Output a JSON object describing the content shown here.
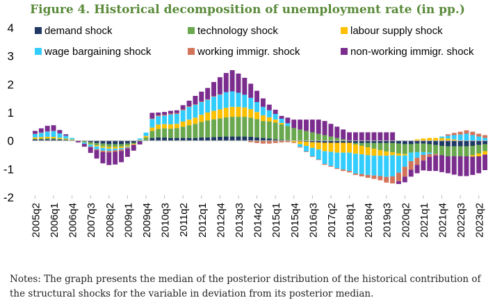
{
  "title": "Figure 4. Historical decomposition of unemployment rate (in pp.)",
  "notes": "Notes: The graph presents the median of the posterior distribution of the historical contribution of the structural shocks for the variable in deviation from its posterior median.",
  "chart_data": {
    "type": "bar",
    "stacked": true,
    "ylim": [
      -2,
      4
    ],
    "yticks": [
      -2,
      -1,
      0,
      1,
      2,
      3,
      4
    ],
    "grid": false,
    "legend": "top",
    "xlabels": [
      "2005q2",
      "2006q1",
      "2006q4",
      "2007q3",
      "2008q2",
      "2009q1",
      "2009q4",
      "2010q3",
      "2011q2",
      "2012q1",
      "2012q4",
      "2013q3",
      "2014q2",
      "2015q1",
      "2015q4",
      "2016q3",
      "2017q2",
      "2018q1",
      "2018q4",
      "2019q3",
      "2020q2",
      "2021q1",
      "2021q4",
      "2022q3",
      "2023q2"
    ],
    "categories": [
      "2005q2",
      "2005q3",
      "2005q4",
      "2006q1",
      "2006q2",
      "2006q3",
      "2006q4",
      "2007q1",
      "2007q2",
      "2007q3",
      "2007q4",
      "2008q1",
      "2008q2",
      "2008q3",
      "2008q4",
      "2009q1",
      "2009q2",
      "2009q3",
      "2009q4",
      "2010q1",
      "2010q2",
      "2010q3",
      "2010q4",
      "2011q1",
      "2011q2",
      "2011q3",
      "2011q4",
      "2012q1",
      "2012q2",
      "2012q3",
      "2012q4",
      "2013q1",
      "2013q2",
      "2013q3",
      "2013q4",
      "2014q1",
      "2014q2",
      "2014q3",
      "2014q4",
      "2015q1",
      "2015q2",
      "2015q3",
      "2015q4",
      "2016q1",
      "2016q2",
      "2016q3",
      "2016q4",
      "2017q1",
      "2017q2",
      "2017q3",
      "2017q4",
      "2018q1",
      "2018q2",
      "2018q3",
      "2018q4",
      "2019q1",
      "2019q2",
      "2019q3",
      "2019q4",
      "2020q1",
      "2020q2",
      "2020q3",
      "2020q4",
      "2021q1",
      "2021q2",
      "2021q3",
      "2021q4",
      "2022q1",
      "2022q2",
      "2022q3",
      "2022q4",
      "2023q1",
      "2023q2",
      "2023q3"
    ],
    "series": [
      {
        "name": "demand shock",
        "color": "#1f3864",
        "values": [
          0.05,
          0.05,
          0.05,
          0.05,
          0.04,
          0.03,
          0.02,
          0.0,
          -0.02,
          -0.05,
          -0.08,
          -0.1,
          -0.12,
          -0.12,
          -0.12,
          -0.1,
          -0.07,
          -0.03,
          0.02,
          0.1,
          0.12,
          0.12,
          0.1,
          0.1,
          0.1,
          0.1,
          0.1,
          0.12,
          0.12,
          0.13,
          0.14,
          0.15,
          0.15,
          0.15,
          0.15,
          0.14,
          0.12,
          0.1,
          0.08,
          0.05,
          0.03,
          0.02,
          0.0,
          -0.02,
          -0.03,
          -0.05,
          -0.06,
          -0.07,
          -0.07,
          -0.07,
          -0.07,
          -0.07,
          -0.08,
          -0.08,
          -0.08,
          -0.08,
          -0.08,
          -0.08,
          -0.08,
          -0.1,
          -0.12,
          -0.12,
          -0.1,
          -0.1,
          -0.12,
          -0.15,
          -0.18,
          -0.2,
          -0.2,
          -0.2,
          -0.2,
          -0.18,
          -0.15,
          -0.12
        ]
      },
      {
        "name": "technology shock",
        "color": "#6aa84f",
        "values": [
          0.02,
          0.03,
          0.04,
          0.04,
          0.03,
          0.02,
          0.01,
          -0.01,
          -0.03,
          -0.06,
          -0.08,
          -0.1,
          -0.1,
          -0.1,
          -0.09,
          -0.07,
          -0.04,
          0.02,
          0.1,
          0.25,
          0.3,
          0.32,
          0.33,
          0.35,
          0.4,
          0.45,
          0.5,
          0.55,
          0.6,
          0.63,
          0.65,
          0.68,
          0.7,
          0.7,
          0.7,
          0.68,
          0.65,
          0.6,
          0.6,
          0.6,
          0.55,
          0.5,
          0.45,
          0.4,
          0.35,
          0.3,
          0.25,
          0.2,
          0.15,
          0.1,
          0.05,
          0.0,
          -0.05,
          -0.1,
          -0.15,
          -0.2,
          -0.25,
          -0.3,
          -0.33,
          -0.35,
          -0.35,
          -0.3,
          -0.3,
          -0.3,
          -0.3,
          -0.32,
          -0.33,
          -0.35,
          -0.35,
          -0.35,
          -0.35,
          -0.33,
          -0.3,
          -0.25
        ]
      },
      {
        "name": "labour supply shock",
        "color": "#ffc000",
        "values": [
          0.05,
          0.05,
          0.05,
          0.05,
          0.04,
          0.03,
          0.02,
          0.01,
          -0.01,
          -0.02,
          -0.04,
          -0.05,
          -0.06,
          -0.06,
          -0.05,
          -0.04,
          -0.02,
          0.01,
          0.05,
          0.12,
          0.15,
          0.15,
          0.15,
          0.15,
          0.18,
          0.2,
          0.22,
          0.25,
          0.28,
          0.3,
          0.32,
          0.34,
          0.35,
          0.35,
          0.33,
          0.3,
          0.25,
          0.2,
          0.15,
          0.1,
          0.05,
          0.0,
          -0.05,
          -0.1,
          -0.15,
          -0.2,
          -0.25,
          -0.3,
          -0.32,
          -0.35,
          -0.35,
          -0.35,
          -0.33,
          -0.3,
          -0.28,
          -0.25,
          -0.2,
          -0.15,
          -0.1,
          -0.08,
          -0.05,
          0.0,
          0.05,
          0.08,
          0.1,
          0.1,
          0.1,
          0.08,
          0.05,
          0.02,
          0.0,
          -0.05,
          -0.1,
          -0.12
        ]
      },
      {
        "name": "wage bargaining shock",
        "color": "#33ccff",
        "values": [
          0.12,
          0.15,
          0.18,
          0.2,
          0.15,
          0.1,
          0.05,
          0.0,
          -0.05,
          -0.08,
          -0.1,
          -0.1,
          -0.08,
          -0.06,
          -0.05,
          -0.03,
          0.0,
          0.05,
          0.12,
          0.3,
          0.3,
          0.3,
          0.35,
          0.35,
          0.4,
          0.45,
          0.45,
          0.45,
          0.45,
          0.5,
          0.52,
          0.55,
          0.55,
          0.5,
          0.45,
          0.4,
          0.35,
          0.3,
          0.25,
          0.2,
          0.15,
          0.1,
          0.0,
          -0.1,
          -0.2,
          -0.3,
          -0.35,
          -0.45,
          -0.5,
          -0.55,
          -0.6,
          -0.65,
          -0.7,
          -0.7,
          -0.7,
          -0.7,
          -0.72,
          -0.75,
          -0.75,
          -0.6,
          -0.4,
          -0.3,
          -0.2,
          -0.1,
          -0.05,
          0.0,
          0.05,
          0.1,
          0.15,
          0.2,
          0.25,
          0.2,
          0.15,
          0.1
        ]
      },
      {
        "name": "working immigr. shock",
        "color": "#d2745a",
        "values": [
          0.01,
          0.01,
          0.01,
          0.01,
          0.0,
          0.0,
          0.0,
          0.0,
          0.0,
          -0.02,
          -0.03,
          -0.05,
          -0.05,
          -0.05,
          -0.05,
          -0.03,
          -0.02,
          0.0,
          0.0,
          0.02,
          0.03,
          0.03,
          0.03,
          0.03,
          0.03,
          0.02,
          0.02,
          0.02,
          0.02,
          0.02,
          0.02,
          0.0,
          0.0,
          0.0,
          0.0,
          -0.05,
          -0.08,
          -0.1,
          -0.1,
          -0.08,
          -0.06,
          -0.05,
          -0.03,
          -0.02,
          -0.02,
          -0.02,
          -0.02,
          -0.03,
          -0.03,
          -0.03,
          -0.05,
          -0.05,
          -0.05,
          -0.08,
          -0.1,
          -0.12,
          -0.15,
          -0.2,
          -0.25,
          -0.3,
          -0.35,
          -0.3,
          -0.25,
          -0.2,
          -0.1,
          -0.05,
          0.0,
          0.05,
          0.08,
          0.1,
          0.12,
          0.12,
          0.1,
          0.1
        ]
      },
      {
        "name": "non-working immigr. shock",
        "color": "#7b2d8e",
        "values": [
          0.1,
          0.15,
          0.2,
          0.2,
          0.12,
          0.05,
          0.0,
          -0.05,
          -0.1,
          -0.2,
          -0.3,
          -0.4,
          -0.45,
          -0.45,
          -0.4,
          -0.3,
          -0.2,
          -0.1,
          0.0,
          0.2,
          0.1,
          0.1,
          0.1,
          0.1,
          0.15,
          0.2,
          0.3,
          0.35,
          0.4,
          0.5,
          0.6,
          0.68,
          0.75,
          0.68,
          0.6,
          0.5,
          0.4,
          0.3,
          0.2,
          0.15,
          0.1,
          0.2,
          0.3,
          0.35,
          0.4,
          0.45,
          0.5,
          0.5,
          0.45,
          0.4,
          0.35,
          0.3,
          0.3,
          0.3,
          0.3,
          0.3,
          0.3,
          0.3,
          0.3,
          -0.1,
          -0.2,
          -0.25,
          -0.3,
          -0.35,
          -0.5,
          -0.55,
          -0.6,
          -0.6,
          -0.65,
          -0.7,
          -0.7,
          -0.65,
          -0.6,
          -0.55
        ]
      }
    ]
  }
}
